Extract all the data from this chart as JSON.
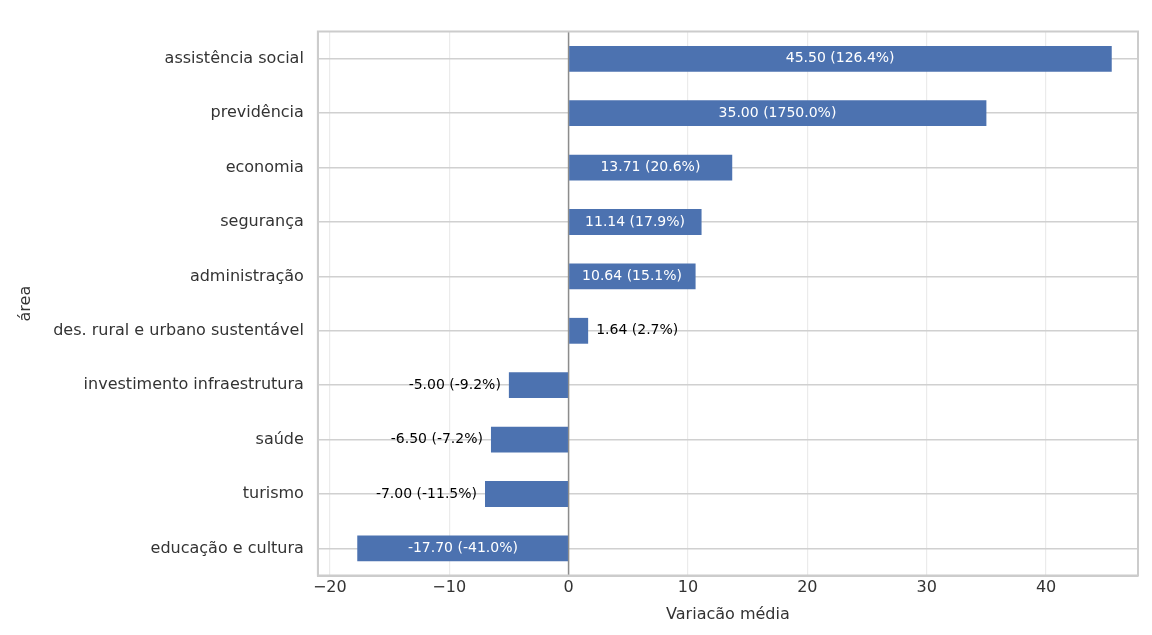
{
  "chart_data": {
    "type": "bar",
    "orientation": "horizontal",
    "xlabel": "Variacão média",
    "ylabel": "área",
    "categories": [
      "assistência social",
      "previdência",
      "economia",
      "segurança",
      "administração",
      "des. rural e urbano sustentável",
      "investimento infraestrutura",
      "saúde",
      "turismo",
      "educação e cultura"
    ],
    "values": [
      45.5,
      35.0,
      13.71,
      11.14,
      10.64,
      1.64,
      -5.0,
      -6.5,
      -7.0,
      -17.7
    ],
    "value_labels": [
      "45.50 (126.4%)",
      "35.00 (1750.0%)",
      "13.71 (20.6%)",
      "11.14 (17.9%)",
      "10.64 (15.1%)",
      "1.64 (2.7%)",
      "-5.00 (-9.2%)",
      "-6.50 (-7.2%)",
      "-7.00 (-11.5%)",
      "-17.70 (-41.0%)"
    ],
    "color": "#4c72b0",
    "xlim": [
      -21,
      47.7
    ],
    "xticks": [
      {
        "value": -20,
        "label": "−20"
      },
      {
        "value": -10,
        "label": "−10"
      },
      0,
      10,
      20,
      30,
      40
    ],
    "ref_lines": [
      {
        "axis": "x",
        "value": 0,
        "color": "#8c8c8c"
      }
    ],
    "grid": true,
    "legend": false
  }
}
